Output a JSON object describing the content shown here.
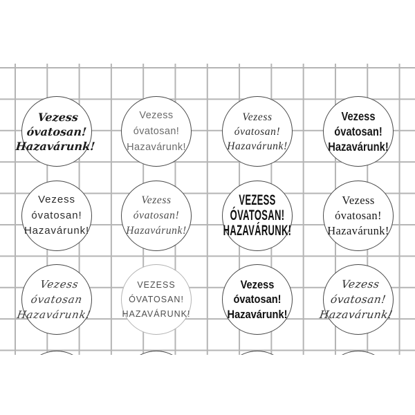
{
  "sheet": {
    "type": "printable round sticker sheet on squared grid paper",
    "columns": 4,
    "full_rows": 3,
    "partial_bottom_row_circles": 4
  },
  "colors": {
    "background": "#ffffff",
    "grid_line": "#b4b4b4",
    "circle_border": "#474747",
    "circle_border_light": "#b3b3b3",
    "ink_dark": "#1c1c1c",
    "ink_gray": "#6b6b6b"
  },
  "stickers": [
    {
      "row": 1,
      "col": 1,
      "font_style": "bold-italic-handwriting",
      "lines": [
        "Vezess",
        "óvatosan!",
        "Hazavárunk!"
      ]
    },
    {
      "row": 1,
      "col": 2,
      "font_style": "thin-handwritten-sans-gray",
      "lines": [
        "Vezess",
        "óvatosan!",
        "Hazavárunk!"
      ]
    },
    {
      "row": 1,
      "col": 3,
      "font_style": "elegant-italic-serif",
      "lines": [
        "Vezess",
        "óvatosan!",
        "Hazavárunk!"
      ]
    },
    {
      "row": 1,
      "col": 4,
      "font_style": "bold-marker-handwriting",
      "lines": [
        "Vezess",
        "óvatosan!",
        "Hazavárunk!"
      ]
    },
    {
      "row": 2,
      "col": 1,
      "font_style": "rounded-geometric-sans",
      "lines": [
        "Vezess",
        "óvatosan!",
        "Hazavárunk!"
      ]
    },
    {
      "row": 2,
      "col": 2,
      "font_style": "elegant-italic-serif-light",
      "lines": [
        "Vezess",
        "óvatosan!",
        "Hazavárunk!"
      ]
    },
    {
      "row": 2,
      "col": 3,
      "font_style": "tall-condensed-caps",
      "lines": [
        "VEZESS",
        "ÓVATOSAN!",
        "HAZAVÁRUNK!"
      ]
    },
    {
      "row": 2,
      "col": 4,
      "font_style": "classic-serif",
      "lines": [
        "Vezess",
        "óvatosan!",
        "Hazavárunk!"
      ]
    },
    {
      "row": 3,
      "col": 1,
      "font_style": "calligraphic-cursive",
      "lines": [
        "Vezess",
        "óvatosan",
        "Hazavárunk!"
      ]
    },
    {
      "row": 3,
      "col": 2,
      "font_style": "light-spaced-caps",
      "lines": [
        "VEZESS",
        "ÓVATOSAN!",
        "HAZAVÁRUNK!"
      ]
    },
    {
      "row": 3,
      "col": 3,
      "font_style": "bold-marker-condensed",
      "lines": [
        "Vezess",
        "óvatosan!",
        "Hazavárunk!"
      ]
    },
    {
      "row": 3,
      "col": 4,
      "font_style": "swash-italic-script",
      "lines": [
        "Vezess",
        "óvatosan!",
        "Hazavárunk!"
      ]
    }
  ]
}
